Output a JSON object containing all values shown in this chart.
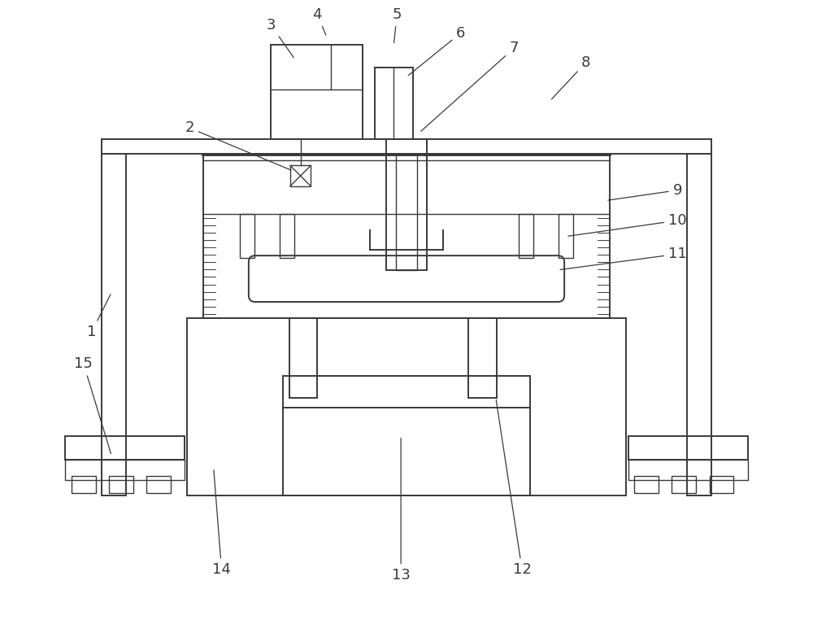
{
  "background_color": "#ffffff",
  "line_color": "#3a3a3a",
  "line_width": 1.4,
  "fig_width": 10.0,
  "fig_height": 7.78,
  "label_fontsize": 13
}
